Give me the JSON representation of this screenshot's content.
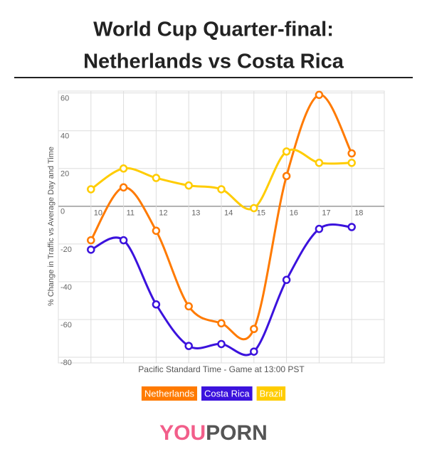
{
  "chart_data": {
    "type": "line",
    "title": [
      "World Cup Quarter-final:",
      "Netherlands vs Costa Rica"
    ],
    "x_label": "Pacific Standard Time - Game at 13:00 PST",
    "y_label": "% Change in Traffic vs Average Day and Time",
    "x": [
      10,
      11,
      12,
      13,
      14,
      15,
      16,
      17,
      18
    ],
    "series": [
      {
        "name": "Netherlands",
        "color": "#ff7a00",
        "values": [
          -18,
          10,
          -13,
          -53,
          -62,
          -65,
          16,
          59,
          28
        ]
      },
      {
        "name": "Costa Rica",
        "color": "#3b12dd",
        "values": [
          -23,
          -18,
          -52,
          -74,
          -73,
          -77,
          -39,
          -12,
          -11
        ]
      },
      {
        "name": "Brazil",
        "color": "#ffcc00",
        "values": [
          9,
          20,
          15,
          11,
          9,
          -1,
          29,
          23,
          23
        ]
      }
    ],
    "xlim": [
      9,
      19
    ],
    "xticks": [
      10,
      11,
      12,
      13,
      14,
      15,
      16,
      17,
      18
    ],
    "ylim": [
      -83,
      61
    ],
    "yticks": [
      60,
      40,
      20,
      0,
      -20,
      -40,
      -60,
      -80
    ],
    "grid": true,
    "legend": "bottom"
  },
  "logo": [
    "YOU",
    "PORN"
  ]
}
